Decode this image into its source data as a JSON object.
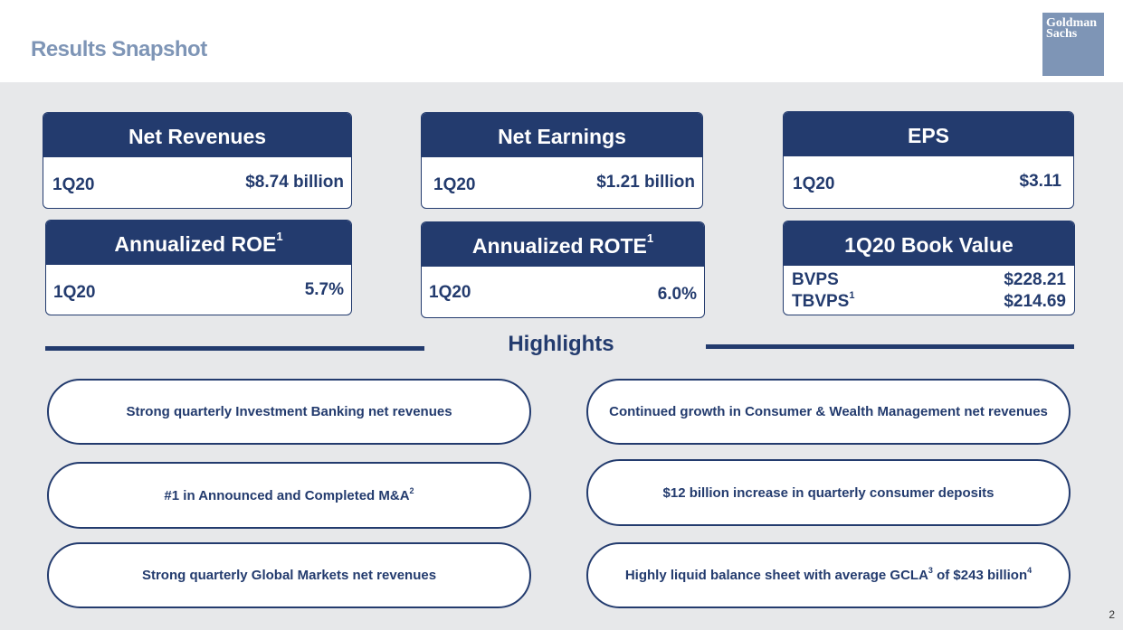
{
  "header": {
    "title": "Results Snapshot",
    "logo_line1": "Goldman",
    "logo_line2": "Sachs"
  },
  "cards": {
    "net_revenues": {
      "title": "Net Revenues",
      "label": "1Q20",
      "value": "$8.74 billion"
    },
    "net_earnings": {
      "title": "Net Earnings",
      "label": "1Q20",
      "value": "$1.21 billion"
    },
    "eps": {
      "title": "EPS",
      "label": "1Q20",
      "value": "$3.11"
    },
    "roe": {
      "title": "Annualized ROE",
      "sup": "1",
      "label": "1Q20",
      "value": "5.7%"
    },
    "rote": {
      "title": "Annualized ROTE",
      "sup": "1",
      "label": "1Q20",
      "value": "6.0%"
    },
    "book_value": {
      "title": "1Q20 Book Value",
      "row1_label": "BVPS",
      "row1_value": "$228.21",
      "row2_label": "TBVPS",
      "row2_sup": "1",
      "row2_value": "$214.69"
    }
  },
  "highlights": {
    "title": "Highlights",
    "items": [
      {
        "text": "Strong quarterly Investment Banking net revenues"
      },
      {
        "text": "Continued growth in Consumer & Wealth Management net revenues"
      },
      {
        "text": "#1 in Announced and Completed M&A",
        "sup": "2"
      },
      {
        "text": "$12 billion increase in quarterly consumer deposits"
      },
      {
        "text": "Strong quarterly Global Markets net revenues"
      },
      {
        "text_a": "Highly liquid balance sheet with average GCLA",
        "sup_a": "3",
        "text_b": " of $243 billion",
        "sup_b": "4"
      }
    ]
  },
  "footer": {
    "page_number": "2"
  },
  "colors": {
    "navy": "#233b6e",
    "title_blue": "#7e95b6",
    "background_gray": "#e7e8ea"
  }
}
